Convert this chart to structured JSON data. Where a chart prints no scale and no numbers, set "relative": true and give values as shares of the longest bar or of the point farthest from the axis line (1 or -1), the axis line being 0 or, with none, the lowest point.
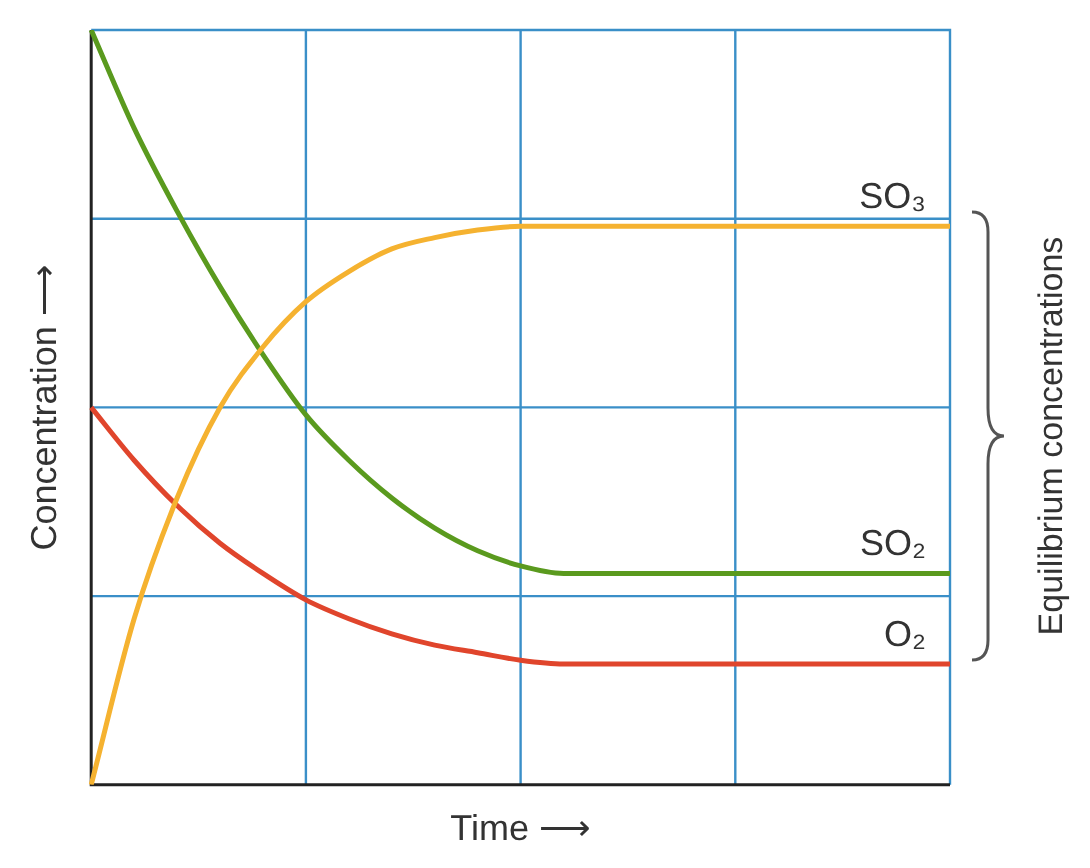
{
  "chart_data": {
    "type": "line",
    "relative": true,
    "xlabel": "Time ⟶",
    "ylabel": "Concentration ⟶",
    "annotations": [
      "Equilibrium concentrations"
    ],
    "categories": [
      null,
      null,
      null,
      null,
      null,
      null,
      null,
      null,
      null,
      null,
      null,
      null,
      null,
      null,
      null,
      null,
      null,
      null,
      null,
      null,
      null
    ],
    "series": [
      {
        "name": "SO₃",
        "color": "#f5b230",
        "values": [
          0,
          0.22,
          0.38,
          0.5,
          0.58,
          0.64,
          0.68,
          0.71,
          0.725,
          0.735,
          0.74,
          0.74,
          0.74,
          0.74,
          0.74,
          0.74,
          0.74,
          0.74,
          0.74,
          0.74,
          0.74
        ]
      },
      {
        "name": "SO₂",
        "color": "#5a9a1e",
        "values": [
          1,
          0.87,
          0.76,
          0.66,
          0.57,
          0.49,
          0.43,
          0.38,
          0.34,
          0.31,
          0.29,
          0.28,
          0.28,
          0.28,
          0.28,
          0.28,
          0.28,
          0.28,
          0.28,
          0.28,
          0.28
        ]
      },
      {
        "name": "O₂",
        "color": "#e0452c",
        "values": [
          0.5,
          0.43,
          0.37,
          0.32,
          0.28,
          0.245,
          0.22,
          0.2,
          0.185,
          0.175,
          0.165,
          0.16,
          0.16,
          0.16,
          0.16,
          0.16,
          0.16,
          0.16,
          0.16,
          0.16,
          0.16
        ]
      }
    ],
    "grid": true,
    "legend": false,
    "marker": "none",
    "line_style": "solid",
    "tick_labels": false
  }
}
